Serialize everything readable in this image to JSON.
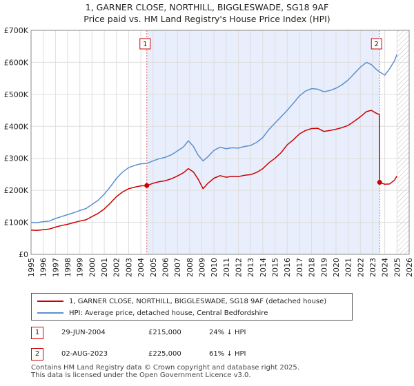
{
  "title_line1": "1, GARNER CLOSE, NORTHILL, BIGGLESWADE, SG18 9AF",
  "title_line2": "Price paid vs. HM Land Registry's House Price Index (HPI)",
  "colors": {
    "property": "#cc0000",
    "hpi": "#5b8fd0",
    "shade": "#e8eefb",
    "marker_line": "#e06666",
    "badge_border": "#cc0000"
  },
  "chart_data": {
    "type": "line",
    "xlim": [
      1995,
      2026
    ],
    "ylim": [
      0,
      700000
    ],
    "y_ticks": [
      0,
      100000,
      200000,
      300000,
      400000,
      500000,
      600000,
      700000
    ],
    "y_tick_labels": [
      "£0",
      "£100K",
      "£200K",
      "£300K",
      "£400K",
      "£500K",
      "£600K",
      "£700K"
    ],
    "x_ticks": [
      1995,
      1996,
      1997,
      1998,
      1999,
      2000,
      2001,
      2002,
      2003,
      2004,
      2005,
      2006,
      2007,
      2008,
      2009,
      2010,
      2011,
      2012,
      2013,
      2014,
      2015,
      2016,
      2017,
      2018,
      2019,
      2020,
      2021,
      2022,
      2023,
      2024,
      2025,
      2026
    ],
    "x_tick_labels": [
      "1995",
      "1996",
      "1997",
      "1998",
      "1999",
      "2000",
      "2001",
      "2002",
      "2003",
      "2004",
      "2005",
      "2006",
      "2007",
      "2008",
      "2009",
      "2010",
      "2011",
      "2012",
      "2013",
      "2014",
      "2015",
      "2016",
      "2017",
      "2018",
      "2019",
      "2020",
      "2021",
      "2022",
      "2023",
      "2024",
      "2025",
      "2026"
    ],
    "grid": true,
    "shaded_range": [
      2004.49,
      2023.58
    ],
    "future_hatch_from": 2025.0,
    "series": [
      {
        "name": "1, GARNER CLOSE, NORTHILL, BIGGLESWADE, SG18 9AF (detached house)",
        "color": "#cc0000",
        "x": [
          1995,
          1995.5,
          1996,
          1996.5,
          1997,
          1997.5,
          1998,
          1998.5,
          1999,
          1999.5,
          2000,
          2000.5,
          2001,
          2001.5,
          2002,
          2002.5,
          2003,
          2003.5,
          2004,
          2004.49,
          2004.49,
          2005,
          2005.5,
          2006,
          2006.5,
          2007,
          2007.5,
          2007.9,
          2008.3,
          2008.7,
          2009.1,
          2009.5,
          2010,
          2010.5,
          2011,
          2011.5,
          2012,
          2012.5,
          2013,
          2013.5,
          2014,
          2014.5,
          2015,
          2015.5,
          2016,
          2016.5,
          2017,
          2017.5,
          2018,
          2018.5,
          2019,
          2019.5,
          2020,
          2020.5,
          2021,
          2021.5,
          2022,
          2022.5,
          2022.9,
          2023.3,
          2023.55,
          2023.58,
          2023.58,
          2024,
          2024.4,
          2024.8,
          2025.0
        ],
        "values": [
          76000,
          75000,
          77000,
          79000,
          85000,
          90000,
          94000,
          99000,
          104000,
          108000,
          118000,
          128000,
          142000,
          160000,
          180000,
          195000,
          205000,
          210000,
          214000,
          215000,
          215000,
          222000,
          227000,
          230000,
          236000,
          245000,
          255000,
          268000,
          258000,
          235000,
          205000,
          222000,
          238000,
          246000,
          241000,
          244000,
          243000,
          247000,
          249000,
          256000,
          268000,
          286000,
          300000,
          318000,
          342000,
          358000,
          376000,
          387000,
          393000,
          394000,
          384000,
          387000,
          391000,
          396000,
          403000,
          416000,
          430000,
          446000,
          450000,
          441000,
          437000,
          225000,
          225000,
          219000,
          220000,
          232000,
          245000
        ]
      },
      {
        "name": "HPI: Average price, detached house, Central Bedfordshire",
        "color": "#5b8fd0",
        "x": [
          1995,
          1995.5,
          1996,
          1996.5,
          1997,
          1997.5,
          1998,
          1998.5,
          1999,
          1999.5,
          2000,
          2000.5,
          2001,
          2001.5,
          2002,
          2002.5,
          2003,
          2003.5,
          2004,
          2004.49,
          2005,
          2005.5,
          2006,
          2006.5,
          2007,
          2007.5,
          2007.9,
          2008.3,
          2008.7,
          2009.1,
          2009.5,
          2010,
          2010.5,
          2011,
          2011.5,
          2012,
          2012.5,
          2013,
          2013.5,
          2014,
          2014.5,
          2015,
          2015.5,
          2016,
          2016.5,
          2017,
          2017.5,
          2018,
          2018.5,
          2019,
          2019.5,
          2020,
          2020.5,
          2021,
          2021.5,
          2022,
          2022.5,
          2022.9,
          2023.3,
          2023.58,
          2024,
          2024.4,
          2024.8,
          2025.0
        ],
        "values": [
          100000,
          99000,
          102000,
          104000,
          112000,
          118000,
          124000,
          130000,
          137000,
          143000,
          156000,
          169000,
          188000,
          211000,
          237000,
          257000,
          271000,
          278000,
          283000,
          284000,
          292000,
          299000,
          303000,
          311000,
          323000,
          336000,
          355000,
          338000,
          310000,
          292000,
          305000,
          325000,
          335000,
          330000,
          333000,
          332000,
          337000,
          340000,
          350000,
          365000,
          390000,
          410000,
          430000,
          450000,
          472000,
          495000,
          510000,
          518000,
          516000,
          508000,
          512000,
          519000,
          530000,
          545000,
          565000,
          585000,
          600000,
          593000,
          578000,
          570000,
          560000,
          580000,
          605000,
          625000
        ]
      }
    ],
    "sales": [
      {
        "label": "1",
        "x": 2004.49,
        "value": 215000
      },
      {
        "label": "2",
        "x": 2023.58,
        "value": 225000
      }
    ]
  },
  "legend": {
    "property_label": "1, GARNER CLOSE, NORTHILL, BIGGLESWADE, SG18 9AF (detached house)",
    "hpi_label": "HPI: Average price, detached house, Central Bedfordshire"
  },
  "sales_table": [
    {
      "label": "1",
      "date": "29-JUN-2004",
      "price": "£215,000",
      "hpi": "24% ↓ HPI"
    },
    {
      "label": "2",
      "date": "02-AUG-2023",
      "price": "£225,000",
      "hpi": "61% ↓ HPI"
    }
  ],
  "footer_line1": "Contains HM Land Registry data © Crown copyright and database right 2025.",
  "footer_line2": "This data is licensed under the Open Government Licence v3.0."
}
